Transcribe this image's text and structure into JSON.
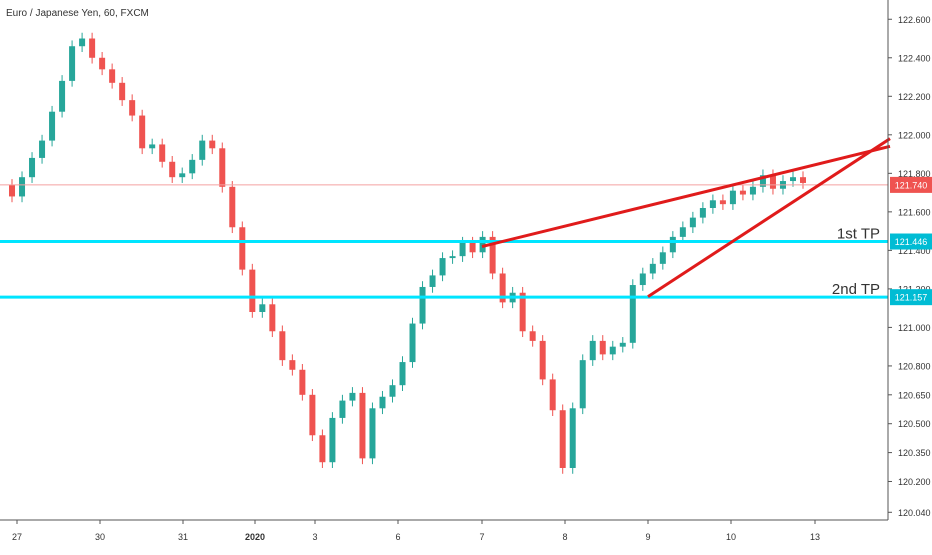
{
  "header": {
    "title": "Euro / Japanese Yen, 60, FXCM"
  },
  "colors": {
    "up": "#26a69a",
    "down": "#ef5350",
    "wedge": "#e01b1b",
    "tp_line": "#00e5ff",
    "current_price_line": "#f4a0a0",
    "current_price_badge": "#ef5350",
    "tp_badge": "#00bcd4",
    "axis_text": "#333333",
    "axis_line": "#555555"
  },
  "chart_data": {
    "type": "line",
    "title": "Euro / Japanese Yen, 60, FXCM",
    "ylim": [
      120.0,
      122.7
    ],
    "y_ticks": [
      "122.600",
      "122.400",
      "122.200",
      "122.000",
      "121.800",
      "121.600",
      "121.400",
      "121.200",
      "121.000",
      "120.800",
      "120.650",
      "120.500",
      "120.350",
      "120.200",
      "120.040"
    ],
    "x_ticks": [
      "27",
      "30",
      "31",
      "2020",
      "3",
      "6",
      "7",
      "8",
      "9",
      "10",
      "13"
    ],
    "grid": false,
    "price_path": {
      "name": "EURJPY",
      "values": [
        121.74,
        121.68,
        121.78,
        121.88,
        121.97,
        122.12,
        122.28,
        122.46,
        122.5,
        122.4,
        122.34,
        122.27,
        122.18,
        122.1,
        121.93,
        121.95,
        121.86,
        121.78,
        121.8,
        121.87,
        121.97,
        121.93,
        121.73,
        121.52,
        121.3,
        121.08,
        121.12,
        120.98,
        120.83,
        120.78,
        120.65,
        120.44,
        120.3,
        120.53,
        120.62,
        120.66,
        120.32,
        120.58,
        120.64,
        120.7,
        120.82,
        121.02,
        121.21,
        121.27,
        121.36,
        121.37,
        121.44,
        121.39,
        121.47,
        121.28,
        121.13,
        121.18,
        120.98,
        120.93,
        120.73,
        120.57,
        120.27,
        120.58,
        120.83,
        120.93,
        120.86,
        120.9,
        120.92,
        121.22,
        121.28,
        121.33,
        121.39,
        121.47,
        121.52,
        121.57,
        121.62,
        121.66,
        121.64,
        121.71,
        121.69,
        121.73,
        121.79,
        121.72,
        121.76,
        121.78,
        121.75
      ]
    },
    "levels": [
      {
        "label": "1st TP",
        "value": 121.446,
        "badge": "121.446"
      },
      {
        "label": "2nd TP",
        "value": 121.157,
        "badge": "121.157"
      }
    ],
    "current_price": {
      "value": 121.74,
      "badge": "121.740"
    },
    "wedge_lines": [
      {
        "name": "upper",
        "points": [
          {
            "x": "7",
            "y": 121.42
          },
          {
            "x": "13+",
            "y": 121.94
          }
        ]
      },
      {
        "name": "lower",
        "points": [
          {
            "x": "9",
            "y": 121.16
          },
          {
            "x": "13+",
            "y": 121.98
          }
        ]
      }
    ]
  }
}
